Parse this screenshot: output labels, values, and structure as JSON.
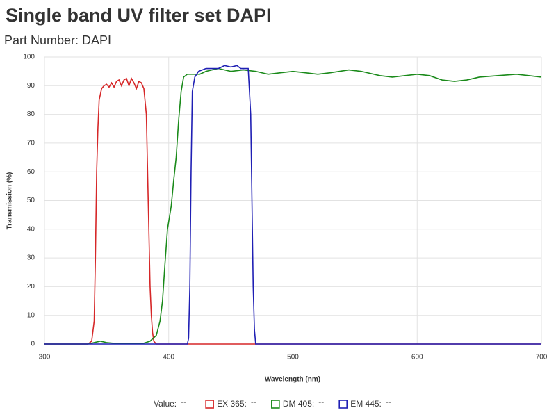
{
  "chart_data": {
    "type": "line",
    "title": "Single band UV filter set DAPI",
    "subtitle": "Part Number: DAPI",
    "x_label": "Wavelength (nm)",
    "y_label": "Transmission (%)",
    "xlim": [
      300,
      700
    ],
    "ylim": [
      0,
      100
    ],
    "xticks": [
      300,
      400,
      500,
      600,
      700
    ],
    "yticks": [
      0,
      10,
      20,
      30,
      40,
      50,
      60,
      70,
      80,
      90,
      100
    ],
    "grid": true,
    "value_label": "Value:",
    "value_readout": "--",
    "series": [
      {
        "name": "EX 365:",
        "color": "#d62728",
        "readout": "--",
        "x": [
          300,
          335,
          338,
          340,
          341,
          342,
          343,
          344,
          346,
          348,
          350,
          352,
          354,
          356,
          358,
          360,
          362,
          364,
          366,
          368,
          370,
          372,
          374,
          376,
          378,
          380,
          382,
          383,
          384,
          385,
          386,
          387,
          388,
          390,
          400,
          500,
          600,
          700
        ],
        "values": [
          0,
          0,
          1,
          8,
          30,
          60,
          75,
          85,
          89,
          90,
          90.5,
          89.5,
          91,
          89.5,
          91.5,
          92,
          90,
          92,
          92.5,
          90,
          92.5,
          91,
          89,
          91.5,
          91,
          89,
          80,
          60,
          40,
          20,
          10,
          4,
          1,
          0,
          0,
          0,
          0,
          0
        ]
      },
      {
        "name": "DM 405:",
        "color": "#1a8a1a",
        "readout": "--",
        "x": [
          300,
          335,
          340,
          345,
          350,
          355,
          380,
          385,
          390,
          393,
          395,
          397,
          399,
          402,
          404,
          406,
          408,
          410,
          412,
          415,
          420,
          425,
          430,
          440,
          450,
          460,
          470,
          480,
          490,
          500,
          510,
          520,
          530,
          545,
          555,
          570,
          580,
          600,
          610,
          620,
          630,
          640,
          650,
          665,
          680,
          700
        ],
        "values": [
          0,
          0,
          0.5,
          1,
          0.5,
          0.3,
          0.3,
          1,
          3,
          8,
          15,
          28,
          40,
          48,
          57,
          65,
          78,
          88,
          93,
          94,
          94,
          94,
          95,
          96,
          95,
          95.5,
          95,
          94,
          94.5,
          95,
          94.5,
          94,
          94.5,
          95.5,
          95,
          93.5,
          93,
          94,
          93.5,
          92,
          91.5,
          92,
          93,
          93.5,
          94,
          93
        ]
      },
      {
        "name": "EM 445:",
        "color": "#1f1fb4",
        "readout": "--",
        "x": [
          300,
          415,
          416,
          417,
          418,
          419,
          421,
          424,
          430,
          440,
          445,
          450,
          455,
          458,
          462,
          464,
          466,
          467,
          468,
          469,
          470,
          700
        ],
        "values": [
          0,
          0,
          2,
          20,
          60,
          88,
          93,
          95,
          96,
          96,
          97,
          96.5,
          97,
          96,
          96,
          96,
          80,
          50,
          20,
          5,
          0,
          0
        ]
      }
    ]
  }
}
